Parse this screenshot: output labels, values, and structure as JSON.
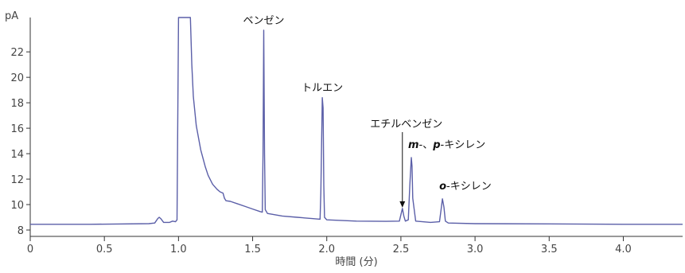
{
  "chart_data": {
    "type": "line",
    "title": "",
    "xlabel": "時間 (分)",
    "ylabel": "pA",
    "xlim": [
      0,
      4.4
    ],
    "ylim": [
      7.5,
      24.7
    ],
    "x_ticks": [
      0,
      0.5,
      1.0,
      1.5,
      2.0,
      2.5,
      3.0,
      3.5,
      4.0
    ],
    "x_tick_labels": [
      "0",
      "0.5",
      "1.0",
      "1.5",
      "2.0",
      "2.5",
      "3.0",
      "3.5",
      "4.0"
    ],
    "y_ticks": [
      8,
      10,
      12,
      14,
      16,
      18,
      20,
      22
    ],
    "y_tick_labels": [
      "8",
      "10",
      "12",
      "14",
      "16",
      "18",
      "20",
      "22"
    ],
    "grid": false,
    "line_color": "#5b5fa8",
    "series": [
      {
        "points": [
          [
            0.0,
            8.45
          ],
          [
            0.4,
            8.45
          ],
          [
            0.8,
            8.5
          ],
          [
            0.84,
            8.55
          ],
          [
            0.86,
            8.9
          ],
          [
            0.87,
            9.0
          ],
          [
            0.88,
            8.9
          ],
          [
            0.9,
            8.6
          ],
          [
            0.94,
            8.6
          ],
          [
            0.96,
            8.7
          ],
          [
            0.98,
            8.65
          ],
          [
            0.99,
            8.8
          ],
          [
            1.0,
            24.7
          ],
          [
            1.08,
            24.7
          ],
          [
            1.09,
            21.0
          ],
          [
            1.1,
            18.5
          ],
          [
            1.12,
            16.2
          ],
          [
            1.15,
            14.3
          ],
          [
            1.18,
            13.0
          ],
          [
            1.2,
            12.3
          ],
          [
            1.23,
            11.6
          ],
          [
            1.26,
            11.2
          ],
          [
            1.28,
            11.0
          ],
          [
            1.3,
            10.9
          ],
          [
            1.31,
            10.5
          ],
          [
            1.32,
            10.3
          ],
          [
            1.35,
            10.25
          ],
          [
            1.4,
            10.05
          ],
          [
            1.45,
            9.85
          ],
          [
            1.5,
            9.65
          ],
          [
            1.55,
            9.45
          ],
          [
            1.565,
            9.4
          ],
          [
            1.57,
            14.0
          ],
          [
            1.575,
            23.7
          ],
          [
            1.58,
            14.0
          ],
          [
            1.585,
            9.6
          ],
          [
            1.6,
            9.3
          ],
          [
            1.7,
            9.1
          ],
          [
            1.8,
            9.0
          ],
          [
            1.9,
            8.9
          ],
          [
            1.955,
            8.85
          ],
          [
            1.96,
            11.0
          ],
          [
            1.97,
            18.4
          ],
          [
            1.975,
            17.6
          ],
          [
            1.98,
            11.5
          ],
          [
            1.985,
            9.0
          ],
          [
            2.0,
            8.8
          ],
          [
            2.2,
            8.7
          ],
          [
            2.4,
            8.68
          ],
          [
            2.49,
            8.7
          ],
          [
            2.5,
            9.2
          ],
          [
            2.51,
            9.7
          ],
          [
            2.52,
            9.1
          ],
          [
            2.53,
            8.7
          ],
          [
            2.55,
            8.8
          ],
          [
            2.56,
            11.5
          ],
          [
            2.57,
            13.7
          ],
          [
            2.575,
            13.0
          ],
          [
            2.58,
            10.5
          ],
          [
            2.6,
            8.7
          ],
          [
            2.7,
            8.6
          ],
          [
            2.76,
            8.65
          ],
          [
            2.77,
            9.5
          ],
          [
            2.78,
            10.45
          ],
          [
            2.79,
            9.8
          ],
          [
            2.8,
            8.7
          ],
          [
            2.82,
            8.55
          ],
          [
            3.0,
            8.5
          ],
          [
            3.5,
            8.48
          ],
          [
            4.0,
            8.45
          ],
          [
            4.4,
            8.45
          ]
        ]
      }
    ],
    "peak_labels": [
      {
        "x": 1.575,
        "y": 23.7,
        "text": "ベンゼン"
      },
      {
        "x": 1.97,
        "y": 18.4,
        "text": "トルエン"
      },
      {
        "x": 2.51,
        "y": 9.7,
        "text": "エチルベンゼン",
        "arrow": true
      },
      {
        "x": 2.57,
        "y": 13.7,
        "prefix": "m",
        "mid": "-、",
        "prefix2": "p",
        "text": "-キシレン"
      },
      {
        "x": 2.78,
        "y": 10.45,
        "prefix": "o",
        "text": "-キシレン"
      }
    ]
  }
}
